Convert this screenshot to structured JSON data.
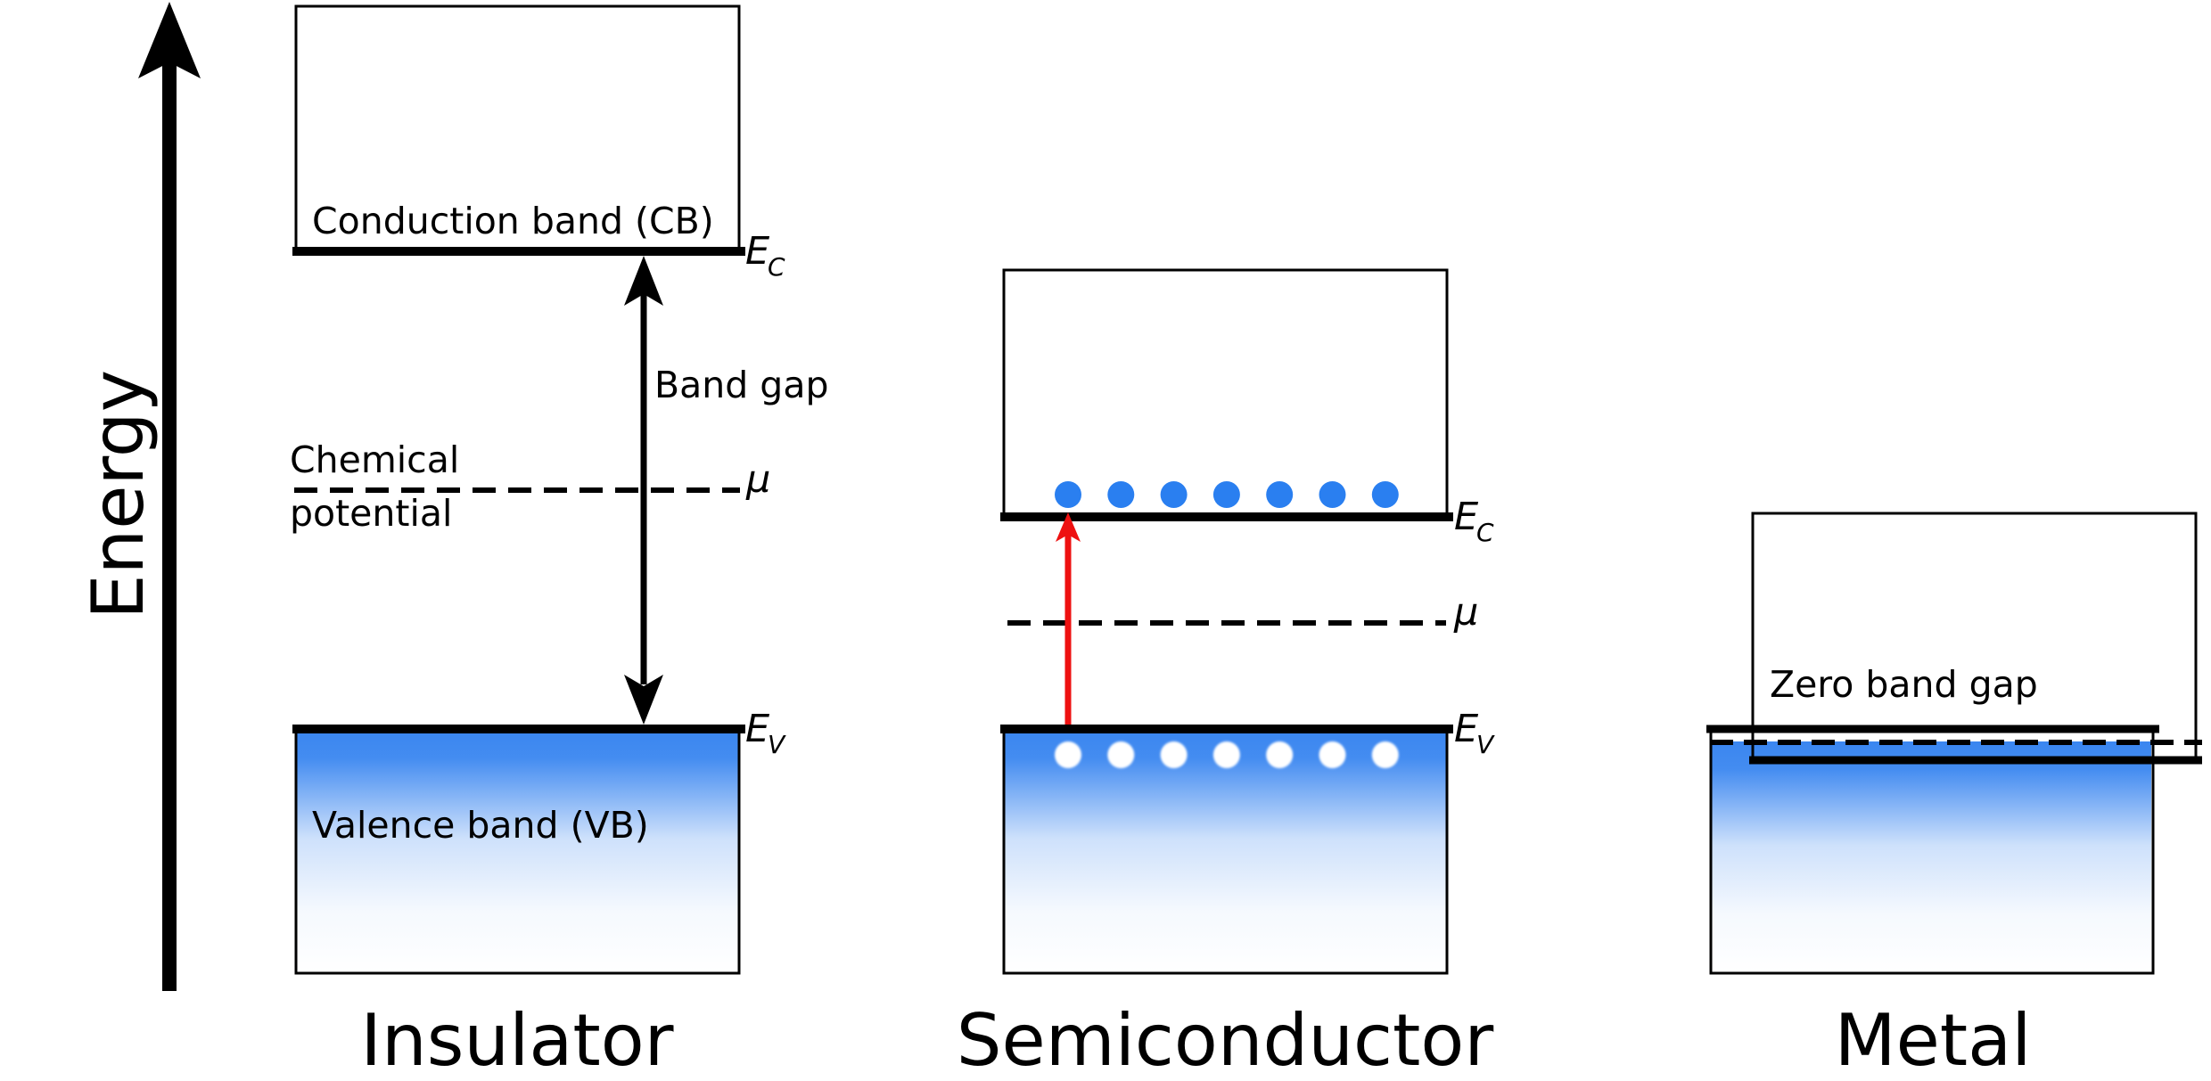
{
  "energy_axis": {
    "label": "Energy"
  },
  "panels": {
    "insulator": {
      "title": "Insulator",
      "cb_label": "Conduction band (CB)",
      "vb_label": "Valence band (VB)",
      "gap_label": "Band gap",
      "chem_label_line1": "Chemical",
      "chem_label_line2": "potential"
    },
    "semiconductor": {
      "title": "Semiconductor",
      "electron_count": 7,
      "hole_count": 7
    },
    "metal": {
      "title": "Metal",
      "zero_gap_label": "Zero band gap"
    }
  },
  "symbols": {
    "ec": "E",
    "ec_sub": "C",
    "ev": "E",
    "ev_sub": "V",
    "mu": "μ"
  },
  "colors": {
    "band_fill": "#3a86f0",
    "electron": "#2a7ff0",
    "excitation_arrow": "#ee1111",
    "line": "#000000"
  }
}
